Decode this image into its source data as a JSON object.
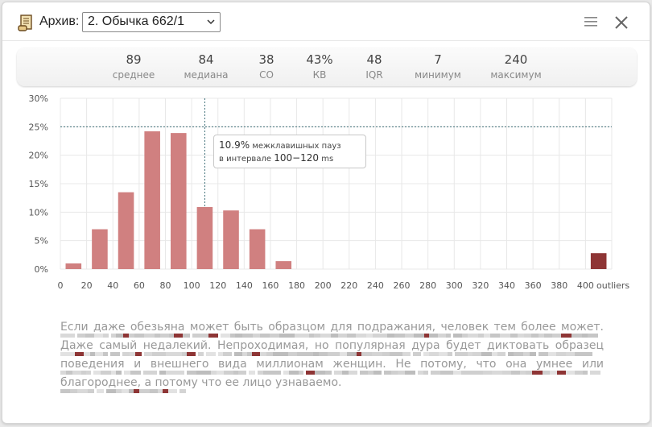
{
  "window": {
    "archive_label": "Архив:",
    "archive_selected": "2. Обычка 662/1"
  },
  "stats": [
    {
      "value": "89",
      "label": "среднее"
    },
    {
      "value": "84",
      "label": "медиана"
    },
    {
      "value": "38",
      "label": "СО"
    },
    {
      "value": "43%",
      "label": "КВ"
    },
    {
      "value": "48",
      "label": "IQR"
    },
    {
      "value": "7",
      "label": "минимум"
    },
    {
      "value": "240",
      "label": "максимум"
    }
  ],
  "tooltip": {
    "value": "10.9%",
    "line1": "межклавишных пауз",
    "line2_prefix": "в интервале",
    "range": "100−120",
    "unit": "ms"
  },
  "chart_data": {
    "type": "bar",
    "x_tick_labels": [
      "0",
      "20",
      "40",
      "60",
      "80",
      "100",
      "120",
      "140",
      "160",
      "180",
      "200",
      "220",
      "240",
      "260",
      "280",
      "300",
      "320",
      "340",
      "360",
      "380",
      "400",
      "outliers"
    ],
    "y_tick_labels": [
      "0%",
      "5%",
      "10%",
      "15%",
      "20%",
      "25%",
      "30%"
    ],
    "ylim": [
      0,
      30
    ],
    "xlim": [
      0,
      420
    ],
    "bin_width": 20,
    "bins": [
      {
        "from": 0,
        "to": 20,
        "value": 1.0
      },
      {
        "from": 20,
        "to": 40,
        "value": 7.0
      },
      {
        "from": 40,
        "to": 60,
        "value": 13.5
      },
      {
        "from": 60,
        "to": 80,
        "value": 24.2
      },
      {
        "from": 80,
        "to": 100,
        "value": 23.9
      },
      {
        "from": 100,
        "to": 120,
        "value": 10.9
      },
      {
        "from": 120,
        "to": 140,
        "value": 10.3
      },
      {
        "from": 140,
        "to": 160,
        "value": 7.0
      },
      {
        "from": 160,
        "to": 180,
        "value": 1.4
      }
    ],
    "outliers_value": 2.8,
    "reference_line_y": 25,
    "reference_line_x": 110,
    "bar_color": "#d08080",
    "outlier_color": "#8e3535",
    "grid": true
  },
  "text": {
    "paragraph": "Если даже обезьяна может быть образцом для подражания, человек тем более может. Даже самый недалекий. Непроходимая, но популярная дура будет диктовать образец поведения и внешнего вида миллионам женщин. Не потому, что она умнее или благороднее, а потому что ее лицо узнаваемо."
  }
}
